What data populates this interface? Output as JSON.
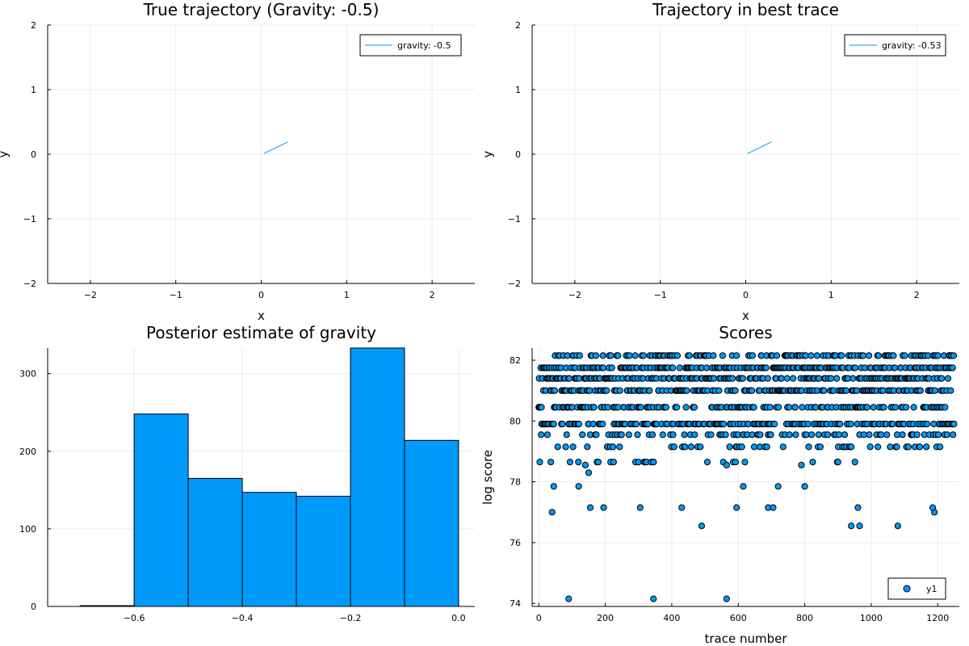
{
  "chart_data": [
    {
      "type": "line",
      "title": "True trajectory (Gravity: -0.5)",
      "xlabel": "x",
      "ylabel": "y",
      "xlim": [
        -2.5,
        2.5
      ],
      "ylim": [
        -2,
        2
      ],
      "xticks": [
        -2,
        -1,
        0,
        1,
        2
      ],
      "yticks": [
        -2,
        -1,
        0,
        1,
        2
      ],
      "grid": true,
      "legend": "top-right",
      "color": "#009AFA",
      "series": [
        {
          "name": "gravity: -0.5",
          "x": [
            0.03,
            0.31
          ],
          "y": [
            0.01,
            0.19
          ]
        }
      ]
    },
    {
      "type": "line",
      "title": "Trajectory in best trace",
      "xlabel": "x",
      "ylabel": "y",
      "xlim": [
        -2.5,
        2.5
      ],
      "ylim": [
        -2,
        2
      ],
      "xticks": [
        -2,
        -1,
        0,
        1,
        2
      ],
      "yticks": [
        -2,
        -1,
        0,
        1,
        2
      ],
      "grid": true,
      "legend": "top-right",
      "color": "#009AFA",
      "series": [
        {
          "name": "gravity: -0.53",
          "x": [
            0.02,
            0.3
          ],
          "y": [
            0.01,
            0.19
          ]
        }
      ]
    },
    {
      "type": "bar",
      "title": "Posterior estimate of gravity",
      "xlabel": "",
      "ylabel": "",
      "xlim": [
        -0.76,
        0.03
      ],
      "ylim": [
        0,
        333
      ],
      "xticks": [
        -0.6,
        -0.4,
        -0.2,
        0.0
      ],
      "xtick_labels": [
        "−0.6",
        "−0.4",
        "−0.2",
        "0.0"
      ],
      "yticks": [
        0,
        100,
        200,
        300
      ],
      "grid": true,
      "color": "#009AFA",
      "bins": [
        -0.7,
        -0.6,
        -0.5,
        -0.4,
        -0.3,
        -0.2,
        -0.1,
        0.0
      ],
      "counts": [
        1,
        248,
        165,
        147,
        142,
        333,
        214
      ]
    },
    {
      "type": "scatter",
      "title": "Scores",
      "xlabel": "trace number",
      "ylabel": "log score",
      "xlim": [
        -20,
        1265
      ],
      "ylim": [
        73.9,
        82.4
      ],
      "xticks": [
        0,
        200,
        400,
        600,
        800,
        1000,
        1200
      ],
      "yticks": [
        74,
        76,
        78,
        80,
        82
      ],
      "grid": true,
      "legend": "bottom-right",
      "color": "#009AFA",
      "series": [
        {
          "name": "y1",
          "points_note": "dense band",
          "levels": [
            82.15,
            81.75,
            81.4,
            81.0,
            80.45,
            79.9,
            79.55,
            79.15,
            78.65
          ],
          "level_weights": [
            0.1,
            0.18,
            0.17,
            0.15,
            0.12,
            0.16,
            0.05,
            0.04,
            0.03
          ],
          "n_points": 1250,
          "outliers": [
            [
              90,
              74.15
            ],
            [
              345,
              74.15
            ],
            [
              565,
              74.15
            ],
            [
              40,
              77.0
            ],
            [
              1190,
              77.0
            ],
            [
              490,
              76.55
            ],
            [
              940,
              76.55
            ],
            [
              965,
              76.55
            ],
            [
              1080,
              76.55
            ],
            [
              155,
              77.15
            ],
            [
              195,
              77.15
            ],
            [
              305,
              77.15
            ],
            [
              430,
              77.15
            ],
            [
              595,
              77.15
            ],
            [
              690,
              77.15
            ],
            [
              705,
              77.15
            ],
            [
              960,
              77.15
            ],
            [
              1185,
              77.15
            ],
            [
              45,
              77.85
            ],
            [
              120,
              77.85
            ],
            [
              615,
              77.85
            ],
            [
              720,
              77.85
            ],
            [
              800,
              77.85
            ],
            [
              150,
              78.3
            ],
            [
              140,
              78.55
            ],
            [
              345,
              78.65
            ],
            [
              565,
              78.55
            ],
            [
              790,
              78.55
            ]
          ]
        }
      ]
    }
  ]
}
